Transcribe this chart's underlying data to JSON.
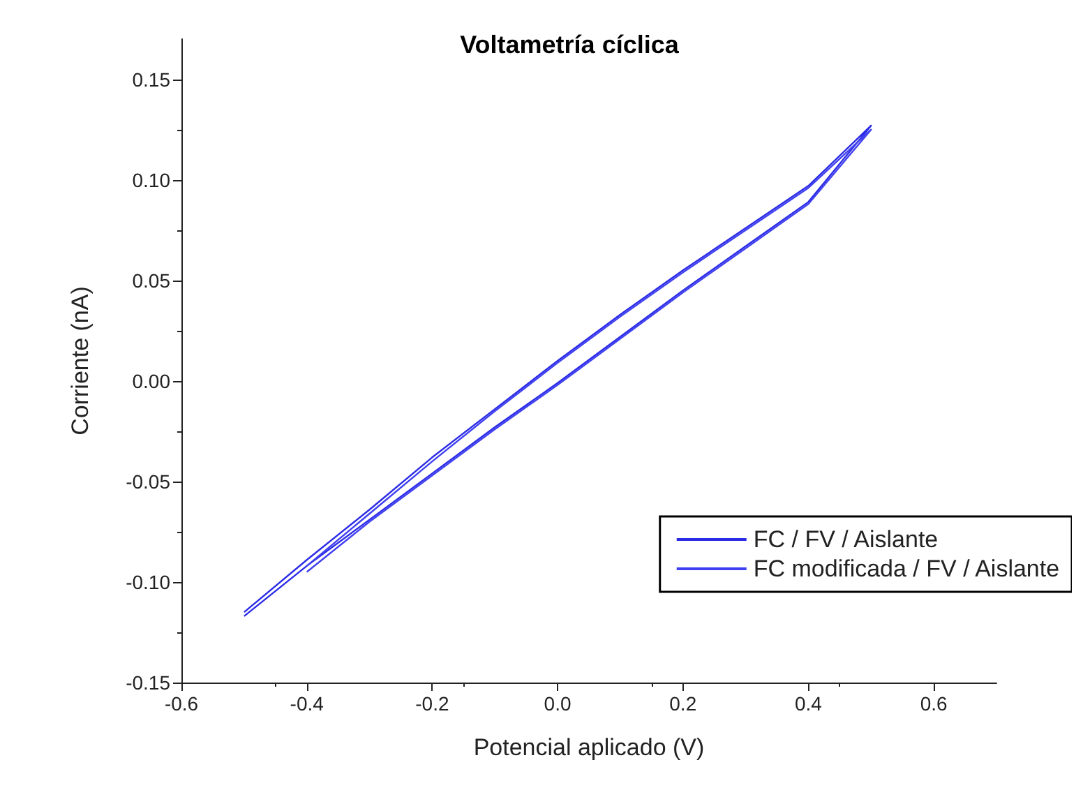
{
  "chart_data": {
    "type": "line",
    "title": "Voltametría cíclica",
    "xlabel": "Potencial aplicado (V)",
    "ylabel": "Corriente (nA)",
    "xlim": [
      -0.6,
      0.7
    ],
    "xticks": [
      -0.6,
      -0.4,
      -0.2,
      {
        "value": 0,
        "label": "0.0"
      },
      0.2,
      0.4,
      0.6
    ],
    "ylim": [
      -0.15,
      0.17
    ],
    "yticks": [
      -0.15,
      {
        "value": -0.1,
        "label": "-0.10"
      },
      -0.05,
      {
        "value": 0,
        "label": "0.00"
      },
      0.05,
      {
        "value": 0.1,
        "label": "0.10"
      },
      0.15
    ],
    "grid": false,
    "legend": "bottom right",
    "marker": "none",
    "line_style": "solid",
    "series": [
      {
        "name": "FC / FV / Aislante",
        "color": "#2b2be6",
        "x": [
          -0.5,
          -0.4,
          -0.3,
          -0.2,
          -0.1,
          0,
          0.1,
          0.2,
          0.3,
          0.4,
          0.5,
          0.4,
          0.3,
          0.2,
          0.1,
          0,
          -0.1,
          -0.2,
          -0.3,
          -0.4,
          -0.5
        ],
        "values": [
          -0.117,
          -0.092,
          -0.069,
          -0.046,
          -0.023,
          -0.001,
          0.022,
          0.045,
          0.067,
          0.089,
          0.127,
          0.097,
          0.076,
          0.055,
          0.033,
          0.01,
          -0.014,
          -0.038,
          -0.064,
          -0.089,
          -0.115
        ]
      },
      {
        "name": "FC modificada / FV / Aislante",
        "color": "#4040f0",
        "x": [
          -0.4,
          -0.3,
          -0.2,
          -0.1,
          0,
          0.1,
          0.2,
          0.3,
          0.4,
          0.5,
          0.4,
          0.3,
          0.2,
          0.1,
          0,
          -0.1,
          -0.2,
          -0.3,
          -0.4
        ],
        "values": [
          -0.095,
          -0.07,
          -0.047,
          -0.024,
          -0.002,
          0.021,
          0.044,
          0.066,
          0.088,
          0.125,
          0.096,
          0.075,
          0.054,
          0.032,
          0.009,
          -0.015,
          -0.04,
          -0.066,
          -0.092
        ]
      }
    ]
  }
}
